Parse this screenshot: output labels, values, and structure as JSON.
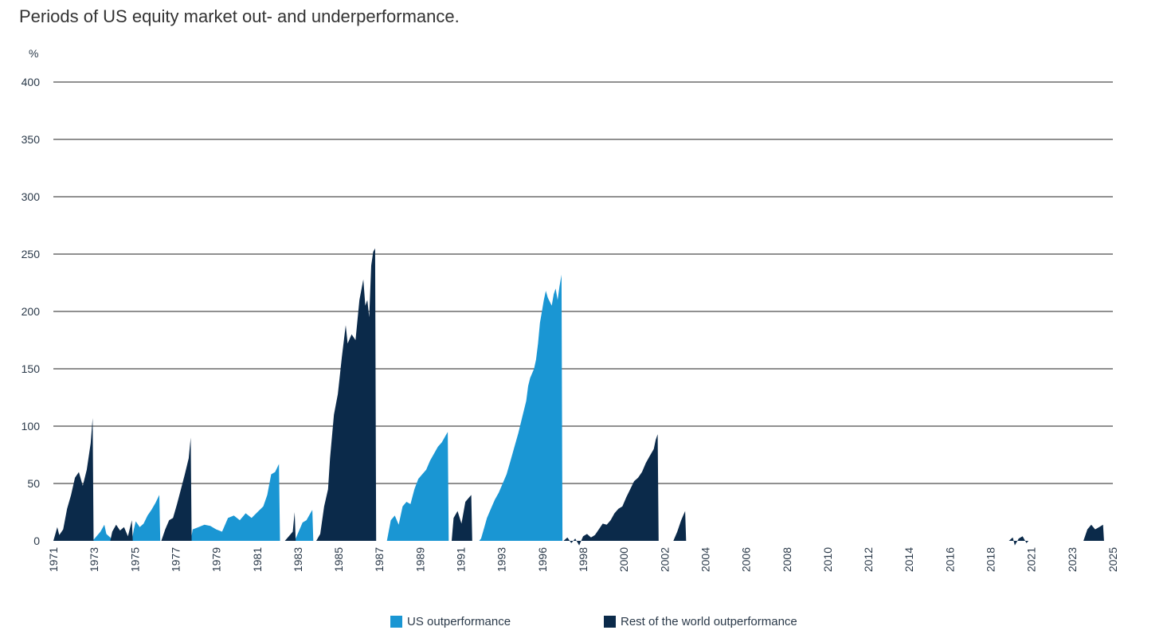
{
  "title": "Periods of US equity market out- and underperformance.",
  "colors": {
    "us": "#1a96d3",
    "row": "#0b2a4a",
    "grid": "#222222",
    "text": "#2b3a4a"
  },
  "chart_data": {
    "type": "area",
    "title": "Periods of US equity market out- and underperformance.",
    "ylabel": "%",
    "ylim": [
      0,
      400
    ],
    "yticks": [
      "0",
      "50",
      "100",
      "150",
      "200",
      "250",
      "300",
      "350",
      "400"
    ],
    "xlim": [
      1971.0,
      2025.0
    ],
    "xticks": [
      "1971",
      "1973",
      "1975",
      "1977",
      "1979",
      "1981",
      "1983",
      "1985",
      "1987",
      "1989",
      "1991",
      "1993",
      "1996",
      "1998",
      "2000",
      "2002",
      "2004",
      "2006",
      "2008",
      "2010",
      "2012",
      "2014",
      "2016",
      "2018",
      "2021",
      "2023",
      "2025"
    ],
    "grid": true,
    "legend": "bottom-center",
    "series": [
      {
        "name": "US outperformance",
        "color": "#1a96d3",
        "segments": [
          [
            [
              1973.0,
              0
            ],
            [
              1973.2,
              4
            ],
            [
              1973.4,
              8
            ],
            [
              1973.6,
              14
            ],
            [
              1973.7,
              6
            ],
            [
              1973.9,
              3
            ],
            [
              1974.0,
              0
            ]
          ],
          [
            [
              1975.0,
              0
            ],
            [
              1975.1,
              10
            ],
            [
              1975.2,
              17
            ],
            [
              1975.4,
              12
            ],
            [
              1975.6,
              15
            ],
            [
              1975.8,
              22
            ],
            [
              1976.0,
              27
            ],
            [
              1976.2,
              33
            ],
            [
              1976.4,
              40
            ],
            [
              1976.45,
              0
            ]
          ],
          [
            [
              1978.0,
              0
            ],
            [
              1978.1,
              10
            ],
            [
              1978.4,
              12
            ],
            [
              1978.7,
              14
            ],
            [
              1979.0,
              13
            ],
            [
              1979.3,
              10
            ],
            [
              1979.6,
              8
            ],
            [
              1979.9,
              20
            ],
            [
              1980.2,
              22
            ],
            [
              1980.5,
              18
            ],
            [
              1980.8,
              24
            ],
            [
              1981.1,
              20
            ],
            [
              1981.4,
              25
            ],
            [
              1981.7,
              30
            ],
            [
              1981.9,
              40
            ],
            [
              1982.1,
              58
            ],
            [
              1982.3,
              60
            ],
            [
              1982.5,
              67
            ],
            [
              1982.55,
              0
            ]
          ],
          [
            [
              1983.3,
              0
            ],
            [
              1983.5,
              8
            ],
            [
              1983.7,
              16
            ],
            [
              1983.9,
              18
            ],
            [
              1984.1,
              24
            ],
            [
              1984.2,
              27
            ],
            [
              1984.25,
              0
            ]
          ],
          [
            [
              1988.0,
              0
            ],
            [
              1988.2,
              18
            ],
            [
              1988.4,
              22
            ],
            [
              1988.6,
              14
            ],
            [
              1988.8,
              30
            ],
            [
              1989.0,
              34
            ],
            [
              1989.2,
              32
            ],
            [
              1989.4,
              45
            ],
            [
              1989.6,
              54
            ],
            [
              1989.8,
              58
            ],
            [
              1990.0,
              62
            ],
            [
              1990.2,
              70
            ],
            [
              1990.4,
              76
            ],
            [
              1990.6,
              82
            ],
            [
              1990.8,
              86
            ],
            [
              1991.0,
              92
            ],
            [
              1991.1,
              95
            ],
            [
              1991.15,
              0
            ]
          ],
          [
            [
              1992.7,
              0
            ],
            [
              1992.8,
              2
            ],
            [
              1992.9,
              8
            ],
            [
              1993.0,
              14
            ],
            [
              1993.1,
              20
            ],
            [
              1993.3,
              28
            ],
            [
              1993.5,
              36
            ],
            [
              1993.7,
              42
            ],
            [
              1993.9,
              50
            ],
            [
              1994.1,
              58
            ],
            [
              1994.3,
              70
            ],
            [
              1994.5,
              82
            ],
            [
              1994.7,
              94
            ],
            [
              1994.9,
              108
            ],
            [
              1995.1,
              122
            ],
            [
              1995.2,
              135
            ],
            [
              1995.3,
              142
            ],
            [
              1995.5,
              150
            ],
            [
              1995.6,
              158
            ],
            [
              1995.7,
              172
            ],
            [
              1995.8,
              190
            ],
            [
              1995.9,
              200
            ],
            [
              1996.0,
              210
            ],
            [
              1996.1,
              218
            ],
            [
              1996.2,
              212
            ],
            [
              1996.4,
              205
            ],
            [
              1996.5,
              215
            ],
            [
              1996.6,
              220
            ],
            [
              1996.7,
              210
            ],
            [
              1996.8,
              222
            ],
            [
              1996.9,
              232
            ],
            [
              1996.95,
              0
            ]
          ]
        ]
      },
      {
        "name": "Rest of the world outperformance",
        "color": "#0b2a4a",
        "segments": [
          [
            [
              1971.0,
              0
            ],
            [
              1971.1,
              6
            ],
            [
              1971.2,
              12
            ],
            [
              1971.3,
              5
            ],
            [
              1971.5,
              10
            ],
            [
              1971.7,
              28
            ],
            [
              1971.9,
              40
            ],
            [
              1972.1,
              55
            ],
            [
              1972.3,
              60
            ],
            [
              1972.5,
              48
            ],
            [
              1972.7,
              62
            ],
            [
              1972.9,
              85
            ],
            [
              1973.0,
              107
            ],
            [
              1973.05,
              0
            ]
          ],
          [
            [
              1973.9,
              0
            ],
            [
              1974.0,
              8
            ],
            [
              1974.2,
              14
            ],
            [
              1974.4,
              9
            ],
            [
              1974.6,
              12
            ],
            [
              1974.8,
              4
            ],
            [
              1975.0,
              18
            ],
            [
              1975.05,
              0
            ]
          ],
          [
            [
              1976.5,
              0
            ],
            [
              1976.7,
              10
            ],
            [
              1976.9,
              18
            ],
            [
              1977.1,
              20
            ],
            [
              1977.3,
              32
            ],
            [
              1977.5,
              45
            ],
            [
              1977.7,
              58
            ],
            [
              1977.9,
              72
            ],
            [
              1978.0,
              90
            ],
            [
              1978.05,
              0
            ]
          ],
          [
            [
              1982.8,
              0
            ],
            [
              1983.0,
              4
            ],
            [
              1983.2,
              8
            ],
            [
              1983.3,
              25
            ],
            [
              1983.35,
              0
            ]
          ],
          [
            [
              1984.4,
              0
            ],
            [
              1984.6,
              6
            ],
            [
              1984.8,
              30
            ],
            [
              1985.0,
              45
            ],
            [
              1985.1,
              72
            ],
            [
              1985.3,
              110
            ],
            [
              1985.5,
              128
            ],
            [
              1985.7,
              160
            ],
            [
              1985.9,
              188
            ],
            [
              1986.0,
              172
            ],
            [
              1986.2,
              180
            ],
            [
              1986.4,
              175
            ],
            [
              1986.6,
              210
            ],
            [
              1986.8,
              228
            ],
            [
              1986.9,
              205
            ],
            [
              1987.0,
              210
            ],
            [
              1987.1,
              195
            ],
            [
              1987.2,
              240
            ],
            [
              1987.3,
              252
            ],
            [
              1987.4,
              255
            ],
            [
              1987.45,
              0
            ]
          ],
          [
            [
              1991.3,
              0
            ],
            [
              1991.4,
              20
            ],
            [
              1991.6,
              26
            ],
            [
              1991.8,
              15
            ],
            [
              1992.0,
              34
            ],
            [
              1992.2,
              38
            ],
            [
              1992.3,
              40
            ],
            [
              1992.35,
              0
            ]
          ],
          [
            [
              1997.0,
              0
            ],
            [
              1997.2,
              3
            ],
            [
              1997.4,
              -2
            ],
            [
              1997.6,
              2
            ],
            [
              1997.8,
              -4
            ],
            [
              1998.0,
              4
            ],
            [
              1998.2,
              6
            ],
            [
              1998.4,
              3
            ],
            [
              1998.6,
              5
            ],
            [
              1998.8,
              10
            ],
            [
              1999.0,
              15
            ],
            [
              1999.2,
              14
            ],
            [
              1999.4,
              18
            ],
            [
              1999.6,
              24
            ],
            [
              1999.8,
              28
            ],
            [
              2000.0,
              30
            ],
            [
              2000.2,
              38
            ],
            [
              2000.4,
              45
            ],
            [
              2000.6,
              52
            ],
            [
              2000.8,
              55
            ],
            [
              2001.0,
              60
            ],
            [
              2001.2,
              68
            ],
            [
              2001.4,
              74
            ],
            [
              2001.6,
              80
            ],
            [
              2001.7,
              88
            ],
            [
              2001.8,
              93
            ],
            [
              2001.85,
              0
            ]
          ],
          [
            [
              2002.6,
              0
            ],
            [
              2002.8,
              8
            ],
            [
              2003.0,
              18
            ],
            [
              2003.1,
              22
            ],
            [
              2003.2,
              26
            ],
            [
              2003.25,
              0
            ]
          ],
          [
            [
              2019.7,
              0
            ],
            [
              2019.9,
              3
            ],
            [
              2020.0,
              -4
            ],
            [
              2020.2,
              2
            ],
            [
              2020.4,
              4
            ],
            [
              2020.6,
              -2
            ],
            [
              2020.7,
              0
            ]
          ],
          [
            [
              2023.5,
              0
            ],
            [
              2023.7,
              10
            ],
            [
              2023.9,
              14
            ],
            [
              2024.1,
              10
            ],
            [
              2024.3,
              12
            ],
            [
              2024.5,
              14
            ],
            [
              2024.55,
              0
            ]
          ]
        ]
      }
    ]
  },
  "legend": {
    "items": [
      {
        "label": "US outperformance",
        "color": "#1a96d3"
      },
      {
        "label": "Rest of the world outperformance",
        "color": "#0b2a4a"
      }
    ]
  }
}
